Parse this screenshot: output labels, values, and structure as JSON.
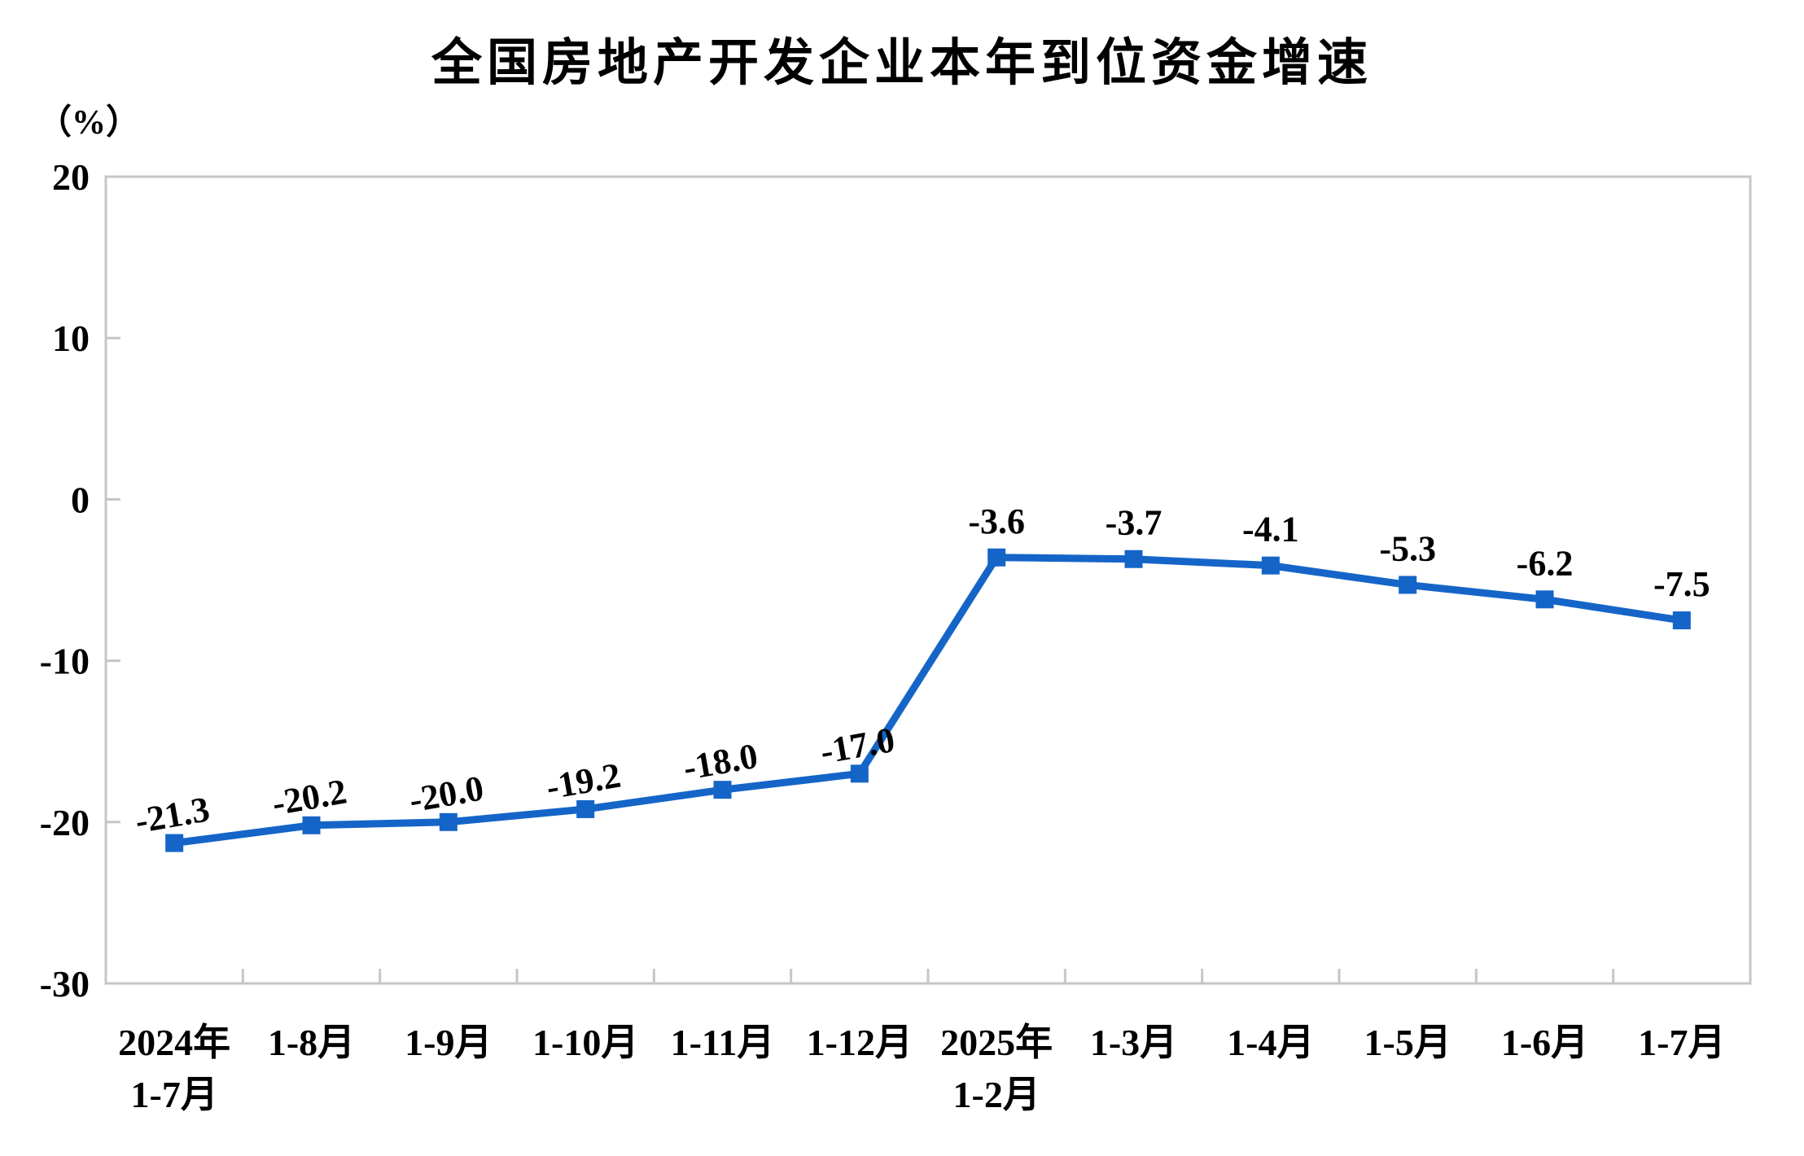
{
  "chart_data": {
    "type": "line",
    "title": "全国房地产开发企业本年到位资金增速",
    "unit_label": "（%）",
    "categories": [
      {
        "label": "2024年",
        "sub": "1-7月"
      },
      {
        "label": "1-8月"
      },
      {
        "label": "1-9月"
      },
      {
        "label": "1-10月"
      },
      {
        "label": "1-11月"
      },
      {
        "label": "1-12月"
      },
      {
        "label": "2025年",
        "sub": "1-2月"
      },
      {
        "label": "1-3月"
      },
      {
        "label": "1-4月"
      },
      {
        "label": "1-5月"
      },
      {
        "label": "1-6月"
      },
      {
        "label": "1-7月"
      }
    ],
    "series": [
      {
        "name": "本年到位资金增速",
        "values": [
          -21.3,
          -20.2,
          -20.0,
          -19.2,
          -18.0,
          -17.0,
          -3.6,
          -3.7,
          -4.1,
          -5.3,
          -6.2,
          -7.5
        ],
        "value_labels": [
          "-21.3",
          "-20.2",
          "-20.0",
          "-19.2",
          "-18.0",
          "-17.0",
          "-3.6",
          "-3.7",
          "-4.1",
          "-5.3",
          "-6.2",
          "-7.5"
        ]
      }
    ],
    "y_ticks": [
      20,
      10,
      0,
      -10,
      -20,
      -30
    ],
    "ylim": [
      -30,
      20
    ],
    "xlabel": "",
    "ylabel": "（%）",
    "grid": false,
    "legend": "none",
    "colors": {
      "line": "#1565C8",
      "marker": "#1565C8",
      "axis_frame": "#C6C6C6",
      "text": "#000000",
      "background": "#FFFFFF"
    }
  }
}
